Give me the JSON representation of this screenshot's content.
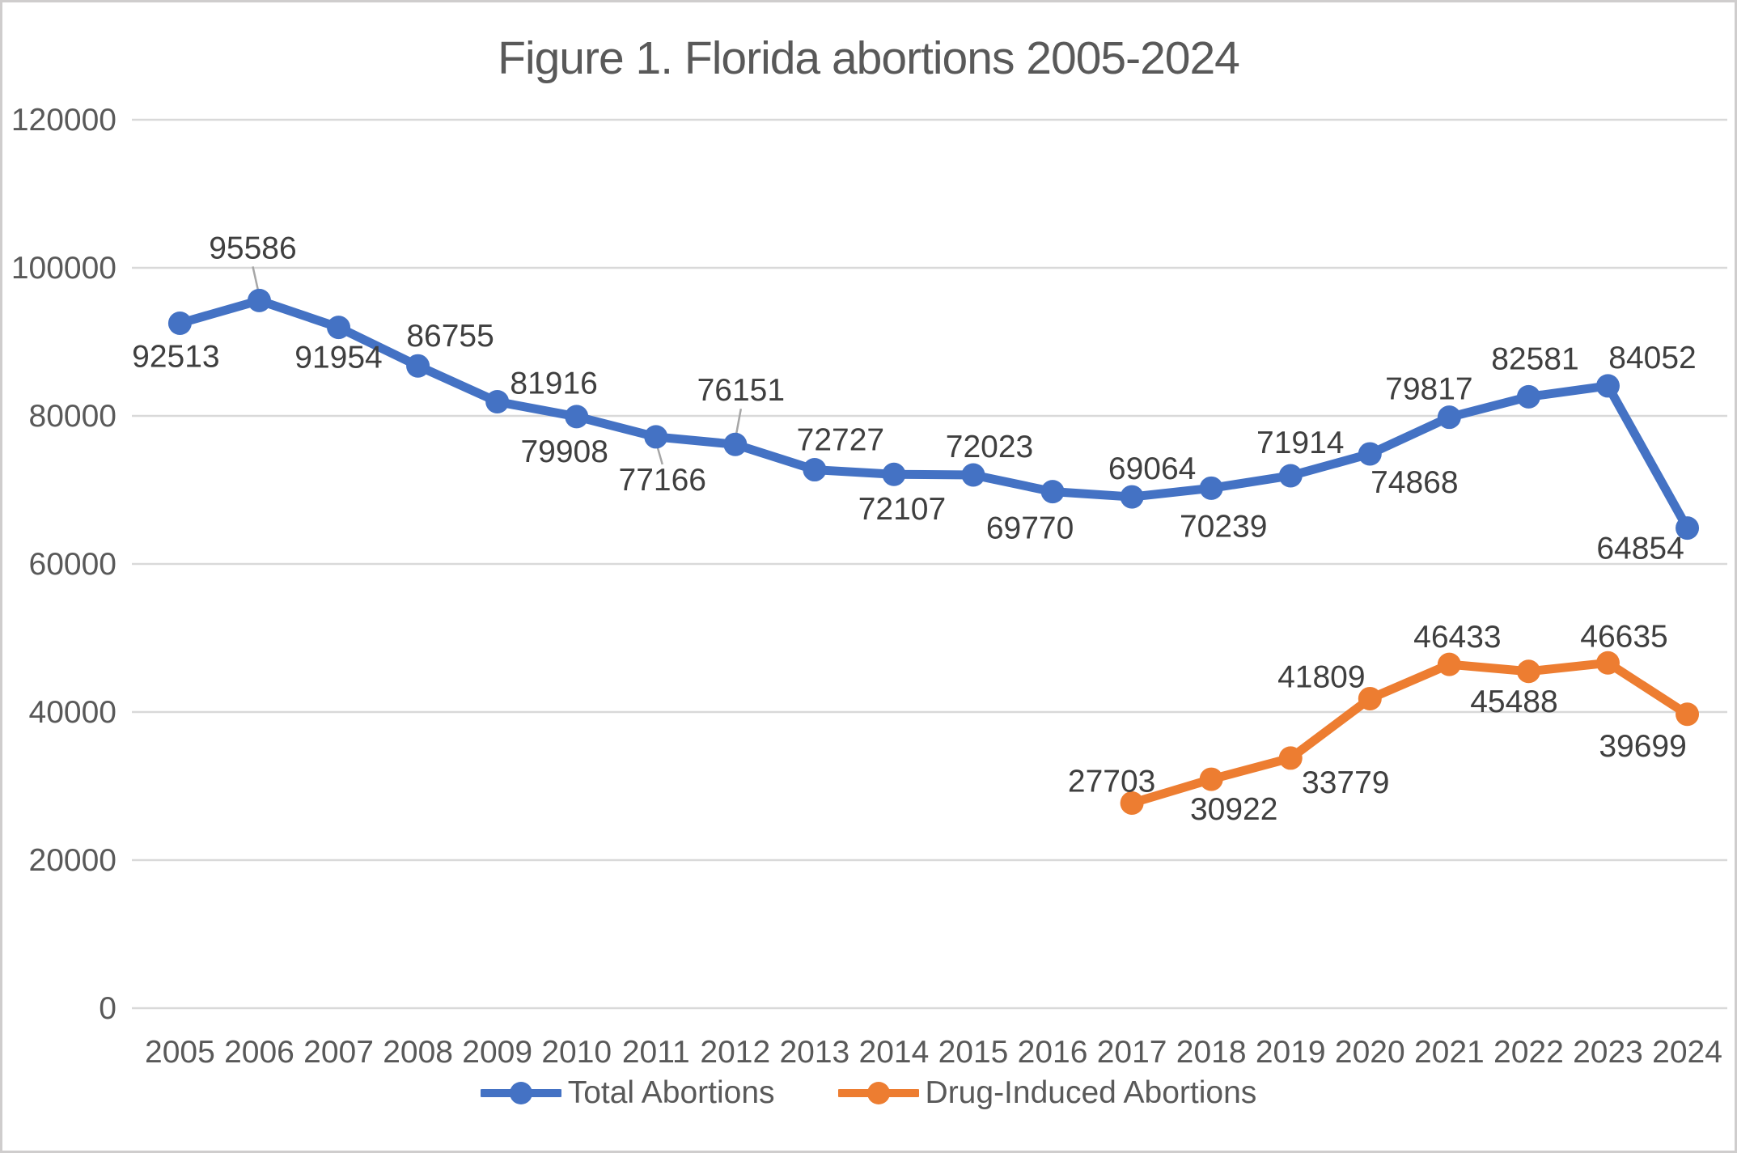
{
  "chart_data": {
    "type": "line",
    "title": "Figure 1. Florida abortions 2005-2024",
    "x_categories": [
      "2005",
      "2006",
      "2007",
      "2008",
      "2009",
      "2010",
      "2011",
      "2012",
      "2013",
      "2014",
      "2015",
      "2016",
      "2017",
      "2018",
      "2019",
      "2020",
      "2021",
      "2022",
      "2023",
      "2024"
    ],
    "series": [
      {
        "name": "Total Abortions",
        "color": "#4472C4",
        "values": [
          92513,
          95586,
          91954,
          86755,
          81916,
          79908,
          77166,
          76151,
          72727,
          72107,
          72023,
          69770,
          69064,
          70239,
          71914,
          74868,
          79817,
          82581,
          84052,
          64854
        ],
        "label_offsets": [
          {
            "dx": -5,
            "dy": 54
          },
          {
            "dx": -8,
            "dy": -52,
            "leader": true
          },
          {
            "dx": 0,
            "dy": 50
          },
          {
            "dx": 40,
            "dy": -24
          },
          {
            "dx": 70,
            "dy": -10
          },
          {
            "dx": -15,
            "dy": 56
          },
          {
            "dx": 8,
            "dy": 66,
            "leader": true
          },
          {
            "dx": 7,
            "dy": -54,
            "leader": true
          },
          {
            "dx": 32,
            "dy": -24
          },
          {
            "dx": 10,
            "dy": 56
          },
          {
            "dx": 20,
            "dy": -22
          },
          {
            "dx": -28,
            "dy": 58
          },
          {
            "dx": 25,
            "dy": -22
          },
          {
            "dx": 15,
            "dy": 60
          },
          {
            "dx": 12,
            "dy": -28
          },
          {
            "dx": 55,
            "dy": 48
          },
          {
            "dx": -25,
            "dy": -22
          },
          {
            "dx": 8,
            "dy": -34
          },
          {
            "dx": 55,
            "dy": -22
          },
          {
            "dx": -58,
            "dy": 38
          }
        ]
      },
      {
        "name": "Drug-Induced Abortions",
        "color": "#ED7D31",
        "values": [
          null,
          null,
          null,
          null,
          null,
          null,
          null,
          null,
          null,
          null,
          null,
          null,
          27703,
          30922,
          33779,
          41809,
          46433,
          45488,
          46635,
          39699
        ],
        "label_offsets": [
          null,
          null,
          null,
          null,
          null,
          null,
          null,
          null,
          null,
          null,
          null,
          null,
          {
            "dx": -25,
            "dy": -14
          },
          {
            "dx": 28,
            "dy": 50
          },
          {
            "dx": 68,
            "dy": 43
          },
          {
            "dx": -60,
            "dy": -14
          },
          {
            "dx": 10,
            "dy": -21
          },
          {
            "dx": -18,
            "dy": 50
          },
          {
            "dx": 20,
            "dy": -20
          },
          {
            "dx": -55,
            "dy": 52
          }
        ]
      }
    ],
    "y_axis": {
      "min": 0,
      "max": 120000,
      "step": 20000,
      "tick_labels": [
        "0",
        "20000",
        "40000",
        "60000",
        "80000",
        "100000",
        "120000"
      ]
    },
    "grid": "horizontal",
    "legend_position": "bottom"
  },
  "colors": {
    "grid": "#D9D9D9",
    "axis_text": "#595959",
    "data_label_text": "#3F3F3F",
    "leader_line": "#A6A6A6",
    "frame_border": "#CFCDCD",
    "title_text": "#595959"
  }
}
